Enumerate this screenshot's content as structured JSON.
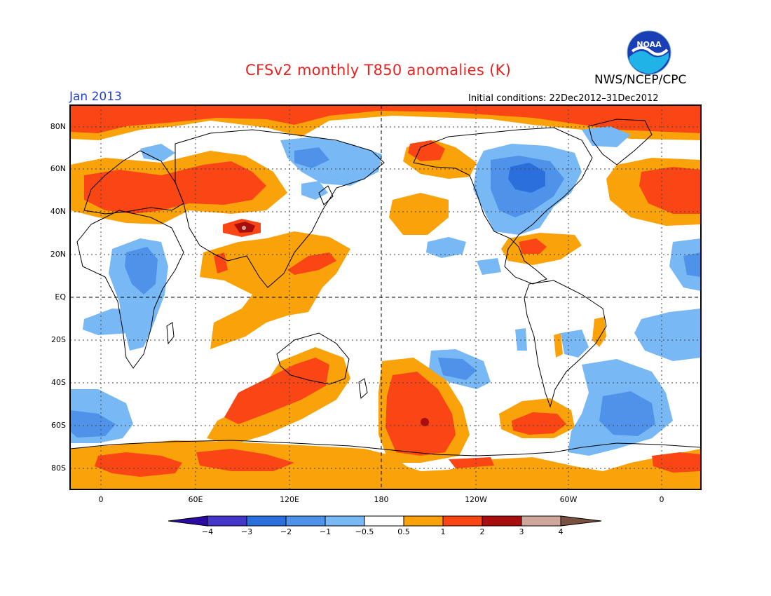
{
  "header": {
    "title": "CFSv2 monthly T850 anomalies (K)",
    "month": "Jan 2013",
    "initial_conditions": "Initial conditions: 22Dec2012–31Dec2012",
    "agency": "NWS/NCEP/CPC",
    "logo_text": "NOAA"
  },
  "map": {
    "lat_labels": [
      "80N",
      "60N",
      "40N",
      "20N",
      "EQ",
      "20S",
      "40S",
      "60S",
      "80S"
    ],
    "lon_labels": [
      "0",
      "60E",
      "120E",
      "180",
      "120W",
      "60W",
      "0"
    ]
  },
  "colorbar": {
    "labels": [
      "−4",
      "−3",
      "−2",
      "−1",
      "−0.5",
      "0.5",
      "1",
      "2",
      "3",
      "4"
    ],
    "colors": [
      "#2a0aa0",
      "#4436c8",
      "#2a6fdc",
      "#4f92ea",
      "#78b8f4",
      "#ffffff",
      "#f9a20a",
      "#fa4515",
      "#a90e0e",
      "#cda79a",
      "#7a5040"
    ]
  },
  "colors": {
    "title": "#e8231f",
    "month": "#1f3fd8",
    "warm_weak": "#f9a20a",
    "warm_mod": "#fa4515",
    "warm_strong": "#a90e0e",
    "cold_weak": "#78b8f4",
    "cold_mod": "#4f92ea",
    "cold_strong": "#2a6fdc"
  }
}
